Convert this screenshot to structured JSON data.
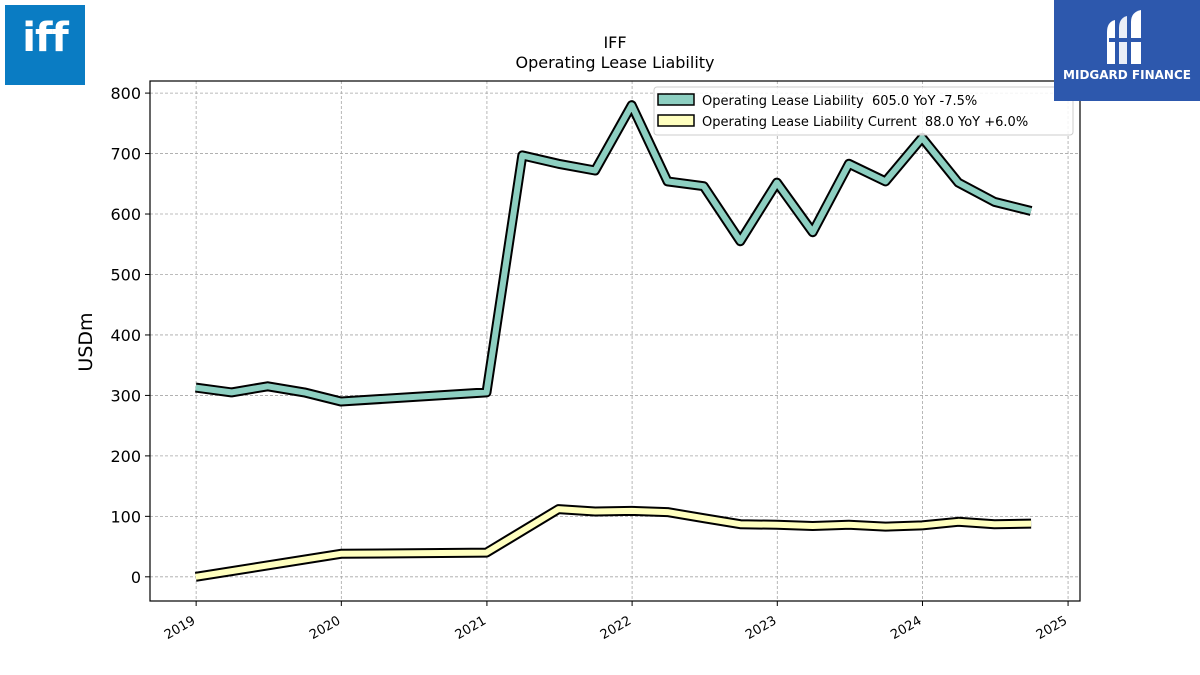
{
  "logos": {
    "left_text": "iff",
    "right_text": "MIDGARD FINANCE"
  },
  "colors": {
    "series1": "#8dcfc1",
    "series2": "#ffffbf",
    "outline": "#000000",
    "left_logo_bg": "#0a7cc3",
    "right_logo_bg": "#2d58ad"
  },
  "chart_data": {
    "type": "line",
    "title": "IFF",
    "subtitle": "Operating Lease Liability",
    "ylabel": "USDm",
    "xlabel": "",
    "ylim": [
      -40,
      820
    ],
    "xlim": [
      "2018-09-07",
      "2025-01-31"
    ],
    "yticks": [
      0,
      100,
      200,
      300,
      400,
      500,
      600,
      700,
      800
    ],
    "xticks": [
      "2019",
      "2020",
      "2021",
      "2022",
      "2023",
      "2024",
      "2025"
    ],
    "grid": true,
    "legend_position": "top-right",
    "series": [
      {
        "name": "Operating Lease Liability  605.0 YoY -7.5%",
        "points": [
          {
            "x": "2018-12-31",
            "y": 313
          },
          {
            "x": "2019-03-31",
            "y": 305
          },
          {
            "x": "2019-06-30",
            "y": 315
          },
          {
            "x": "2019-09-30",
            "y": 305
          },
          {
            "x": "2019-12-31",
            "y": 290
          },
          {
            "x": "2020-12-31",
            "y": 305
          },
          {
            "x": "2021-03-31",
            "y": 697
          },
          {
            "x": "2021-06-30",
            "y": 683
          },
          {
            "x": "2021-09-30",
            "y": 672
          },
          {
            "x": "2021-12-31",
            "y": 780
          },
          {
            "x": "2022-03-31",
            "y": 654
          },
          {
            "x": "2022-06-30",
            "y": 646
          },
          {
            "x": "2022-09-30",
            "y": 555
          },
          {
            "x": "2022-12-31",
            "y": 652
          },
          {
            "x": "2023-03-31",
            "y": 570
          },
          {
            "x": "2023-06-30",
            "y": 683
          },
          {
            "x": "2023-09-30",
            "y": 654
          },
          {
            "x": "2023-12-31",
            "y": 726
          },
          {
            "x": "2024-03-31",
            "y": 652
          },
          {
            "x": "2024-06-30",
            "y": 620
          },
          {
            "x": "2024-09-30",
            "y": 605
          }
        ]
      },
      {
        "name": "Operating Lease Liability Current  88.0 YoY +6.0%",
        "points": [
          {
            "x": "2018-12-31",
            "y": 0
          },
          {
            "x": "2019-12-31",
            "y": 38
          },
          {
            "x": "2020-12-31",
            "y": 40
          },
          {
            "x": "2021-06-30",
            "y": 112
          },
          {
            "x": "2021-09-30",
            "y": 108
          },
          {
            "x": "2021-12-31",
            "y": 109
          },
          {
            "x": "2022-03-31",
            "y": 107
          },
          {
            "x": "2022-06-30",
            "y": 97
          },
          {
            "x": "2022-09-30",
            "y": 87
          },
          {
            "x": "2022-12-31",
            "y": 86
          },
          {
            "x": "2023-03-31",
            "y": 84
          },
          {
            "x": "2023-06-30",
            "y": 86
          },
          {
            "x": "2023-09-30",
            "y": 83
          },
          {
            "x": "2023-12-31",
            "y": 85
          },
          {
            "x": "2024-03-31",
            "y": 91
          },
          {
            "x": "2024-06-30",
            "y": 87
          },
          {
            "x": "2024-09-30",
            "y": 88
          }
        ]
      }
    ]
  }
}
